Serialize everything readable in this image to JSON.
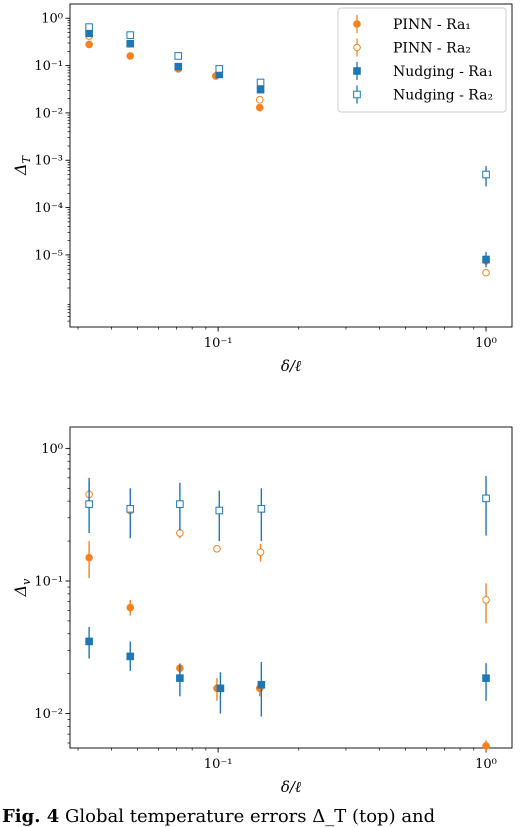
{
  "caption": {
    "label": "Fig. 4",
    "text": "Global temperature errors Δ_T (top) and"
  },
  "colors": {
    "pinn": "#f5821f",
    "nudging": "#1f77b4"
  },
  "chart_data": [
    {
      "type": "scatter",
      "xlabel": "δ/ℓ",
      "ylabel": "Δ_T",
      "xscale": "log",
      "yscale": "log",
      "xlim": [
        0.028,
        1.25
      ],
      "ylim": [
        3e-07,
        2
      ],
      "xticks": [
        {
          "value": 0.1,
          "label": "10⁻¹"
        },
        {
          "value": 1,
          "label": "10⁰"
        }
      ],
      "yticks": [
        {
          "value": 1,
          "label": "10⁰"
        },
        {
          "value": 0.1,
          "label": "10⁻¹"
        },
        {
          "value": 0.01,
          "label": "10⁻²"
        },
        {
          "value": 0.001,
          "label": "10⁻³"
        },
        {
          "value": 0.0001,
          "label": "10⁻⁴"
        },
        {
          "value": 1e-05,
          "label": "10⁻⁵"
        }
      ],
      "legend": {
        "position": "top-right"
      },
      "series": [
        {
          "name": "PINN - Ra₁",
          "marker": "circle-filled",
          "color": "#f5821f",
          "points": [
            {
              "x": 0.033,
              "y": 0.28
            },
            {
              "x": 0.047,
              "y": 0.16,
              "lo": 0.14,
              "hi": 0.18
            },
            {
              "x": 0.071,
              "y": 0.085
            },
            {
              "x": 0.098,
              "y": 0.06
            },
            {
              "x": 0.143,
              "y": 0.013
            },
            {
              "x": 1.0,
              "y": 7.5e-06
            }
          ]
        },
        {
          "name": "PINN - Ra₂",
          "marker": "circle-open",
          "color": "#f5821f",
          "points": [
            {
              "x": 0.033,
              "y": 0.42
            },
            {
              "x": 0.047,
              "y": 0.29
            },
            {
              "x": 0.071,
              "y": 0.095
            },
            {
              "x": 0.1,
              "y": 0.065
            },
            {
              "x": 0.143,
              "y": 0.019
            },
            {
              "x": 1.0,
              "y": 4.2e-06
            }
          ]
        },
        {
          "name": "Nudging - Ra₁",
          "marker": "square-filled",
          "color": "#1f77b4",
          "points": [
            {
              "x": 0.033,
              "y": 0.48
            },
            {
              "x": 0.047,
              "y": 0.29
            },
            {
              "x": 0.071,
              "y": 0.095
            },
            {
              "x": 0.101,
              "y": 0.065
            },
            {
              "x": 0.144,
              "y": 0.031
            },
            {
              "x": 1.0,
              "y": 8e-06,
              "lo": 5.5e-06,
              "hi": 1.15e-05
            }
          ]
        },
        {
          "name": "Nudging - Ra₂",
          "marker": "square-open",
          "color": "#1f77b4",
          "points": [
            {
              "x": 0.033,
              "y": 0.65,
              "lo": 0.55,
              "hi": 0.75
            },
            {
              "x": 0.047,
              "y": 0.44,
              "lo": 0.38,
              "hi": 0.5
            },
            {
              "x": 0.071,
              "y": 0.16,
              "lo": 0.14,
              "hi": 0.18
            },
            {
              "x": 0.101,
              "y": 0.085,
              "lo": 0.072,
              "hi": 0.1
            },
            {
              "x": 0.144,
              "y": 0.044,
              "lo": 0.037,
              "hi": 0.052
            },
            {
              "x": 1.0,
              "y": 0.0005,
              "lo": 0.00028,
              "hi": 0.00075
            }
          ]
        }
      ]
    },
    {
      "type": "scatter",
      "xlabel": "δ/ℓ",
      "ylabel": "Δ_v",
      "xscale": "log",
      "yscale": "log",
      "xlim": [
        0.028,
        1.25
      ],
      "ylim": [
        0.0055,
        1.45
      ],
      "xticks": [
        {
          "value": 0.1,
          "label": "10⁻¹"
        },
        {
          "value": 1,
          "label": "10⁰"
        }
      ],
      "yticks": [
        {
          "value": 1,
          "label": "10⁰"
        },
        {
          "value": 0.1,
          "label": "10⁻¹"
        },
        {
          "value": 0.01,
          "label": "10⁻²"
        }
      ],
      "series": [
        {
          "name": "PINN - Ra₁",
          "marker": "circle-filled",
          "color": "#f5821f",
          "points": [
            {
              "x": 0.033,
              "y": 0.15,
              "lo": 0.105,
              "hi": 0.2
            },
            {
              "x": 0.047,
              "y": 0.063,
              "lo": 0.055,
              "hi": 0.072
            },
            {
              "x": 0.072,
              "y": 0.022,
              "lo": 0.02,
              "hi": 0.024
            },
            {
              "x": 0.099,
              "y": 0.0155,
              "lo": 0.0125,
              "hi": 0.0185
            },
            {
              "x": 0.143,
              "y": 0.0155,
              "lo": 0.0135,
              "hi": 0.0175
            },
            {
              "x": 1.0,
              "y": 0.0057,
              "lo": 0.0052,
              "hi": 0.0063
            }
          ]
        },
        {
          "name": "PINN - Ra₂",
          "marker": "circle-open",
          "color": "#f5821f",
          "points": [
            {
              "x": 0.033,
              "y": 0.45,
              "lo": 0.36,
              "hi": 0.56
            },
            {
              "x": 0.047,
              "y": 0.34,
              "lo": 0.31,
              "hi": 0.37
            },
            {
              "x": 0.072,
              "y": 0.23,
              "lo": 0.21,
              "hi": 0.25
            },
            {
              "x": 0.099,
              "y": 0.175,
              "lo": 0.165,
              "hi": 0.185
            },
            {
              "x": 0.144,
              "y": 0.165,
              "lo": 0.14,
              "hi": 0.19
            },
            {
              "x": 1.0,
              "y": 0.072,
              "lo": 0.048,
              "hi": 0.096
            }
          ]
        },
        {
          "name": "Nudging - Ra₁",
          "marker": "square-filled",
          "color": "#1f77b4",
          "points": [
            {
              "x": 0.033,
              "y": 0.035,
              "lo": 0.026,
              "hi": 0.045
            },
            {
              "x": 0.047,
              "y": 0.027,
              "lo": 0.021,
              "hi": 0.035
            },
            {
              "x": 0.072,
              "y": 0.0185,
              "lo": 0.0135,
              "hi": 0.0235
            },
            {
              "x": 0.102,
              "y": 0.0155,
              "lo": 0.01,
              "hi": 0.0205
            },
            {
              "x": 0.145,
              "y": 0.0165,
              "lo": 0.0095,
              "hi": 0.0245
            },
            {
              "x": 1.0,
              "y": 0.0185,
              "lo": 0.0125,
              "hi": 0.024
            }
          ]
        },
        {
          "name": "Nudging - Ra₂",
          "marker": "square-open",
          "color": "#1f77b4",
          "points": [
            {
              "x": 0.033,
              "y": 0.38,
              "lo": 0.23,
              "hi": 0.6
            },
            {
              "x": 0.047,
              "y": 0.35,
              "lo": 0.21,
              "hi": 0.5
            },
            {
              "x": 0.072,
              "y": 0.38,
              "lo": 0.24,
              "hi": 0.55
            },
            {
              "x": 0.101,
              "y": 0.34,
              "lo": 0.2,
              "hi": 0.48
            },
            {
              "x": 0.145,
              "y": 0.35,
              "lo": 0.2,
              "hi": 0.5
            },
            {
              "x": 1.0,
              "y": 0.42,
              "lo": 0.22,
              "hi": 0.62
            }
          ]
        }
      ]
    }
  ]
}
